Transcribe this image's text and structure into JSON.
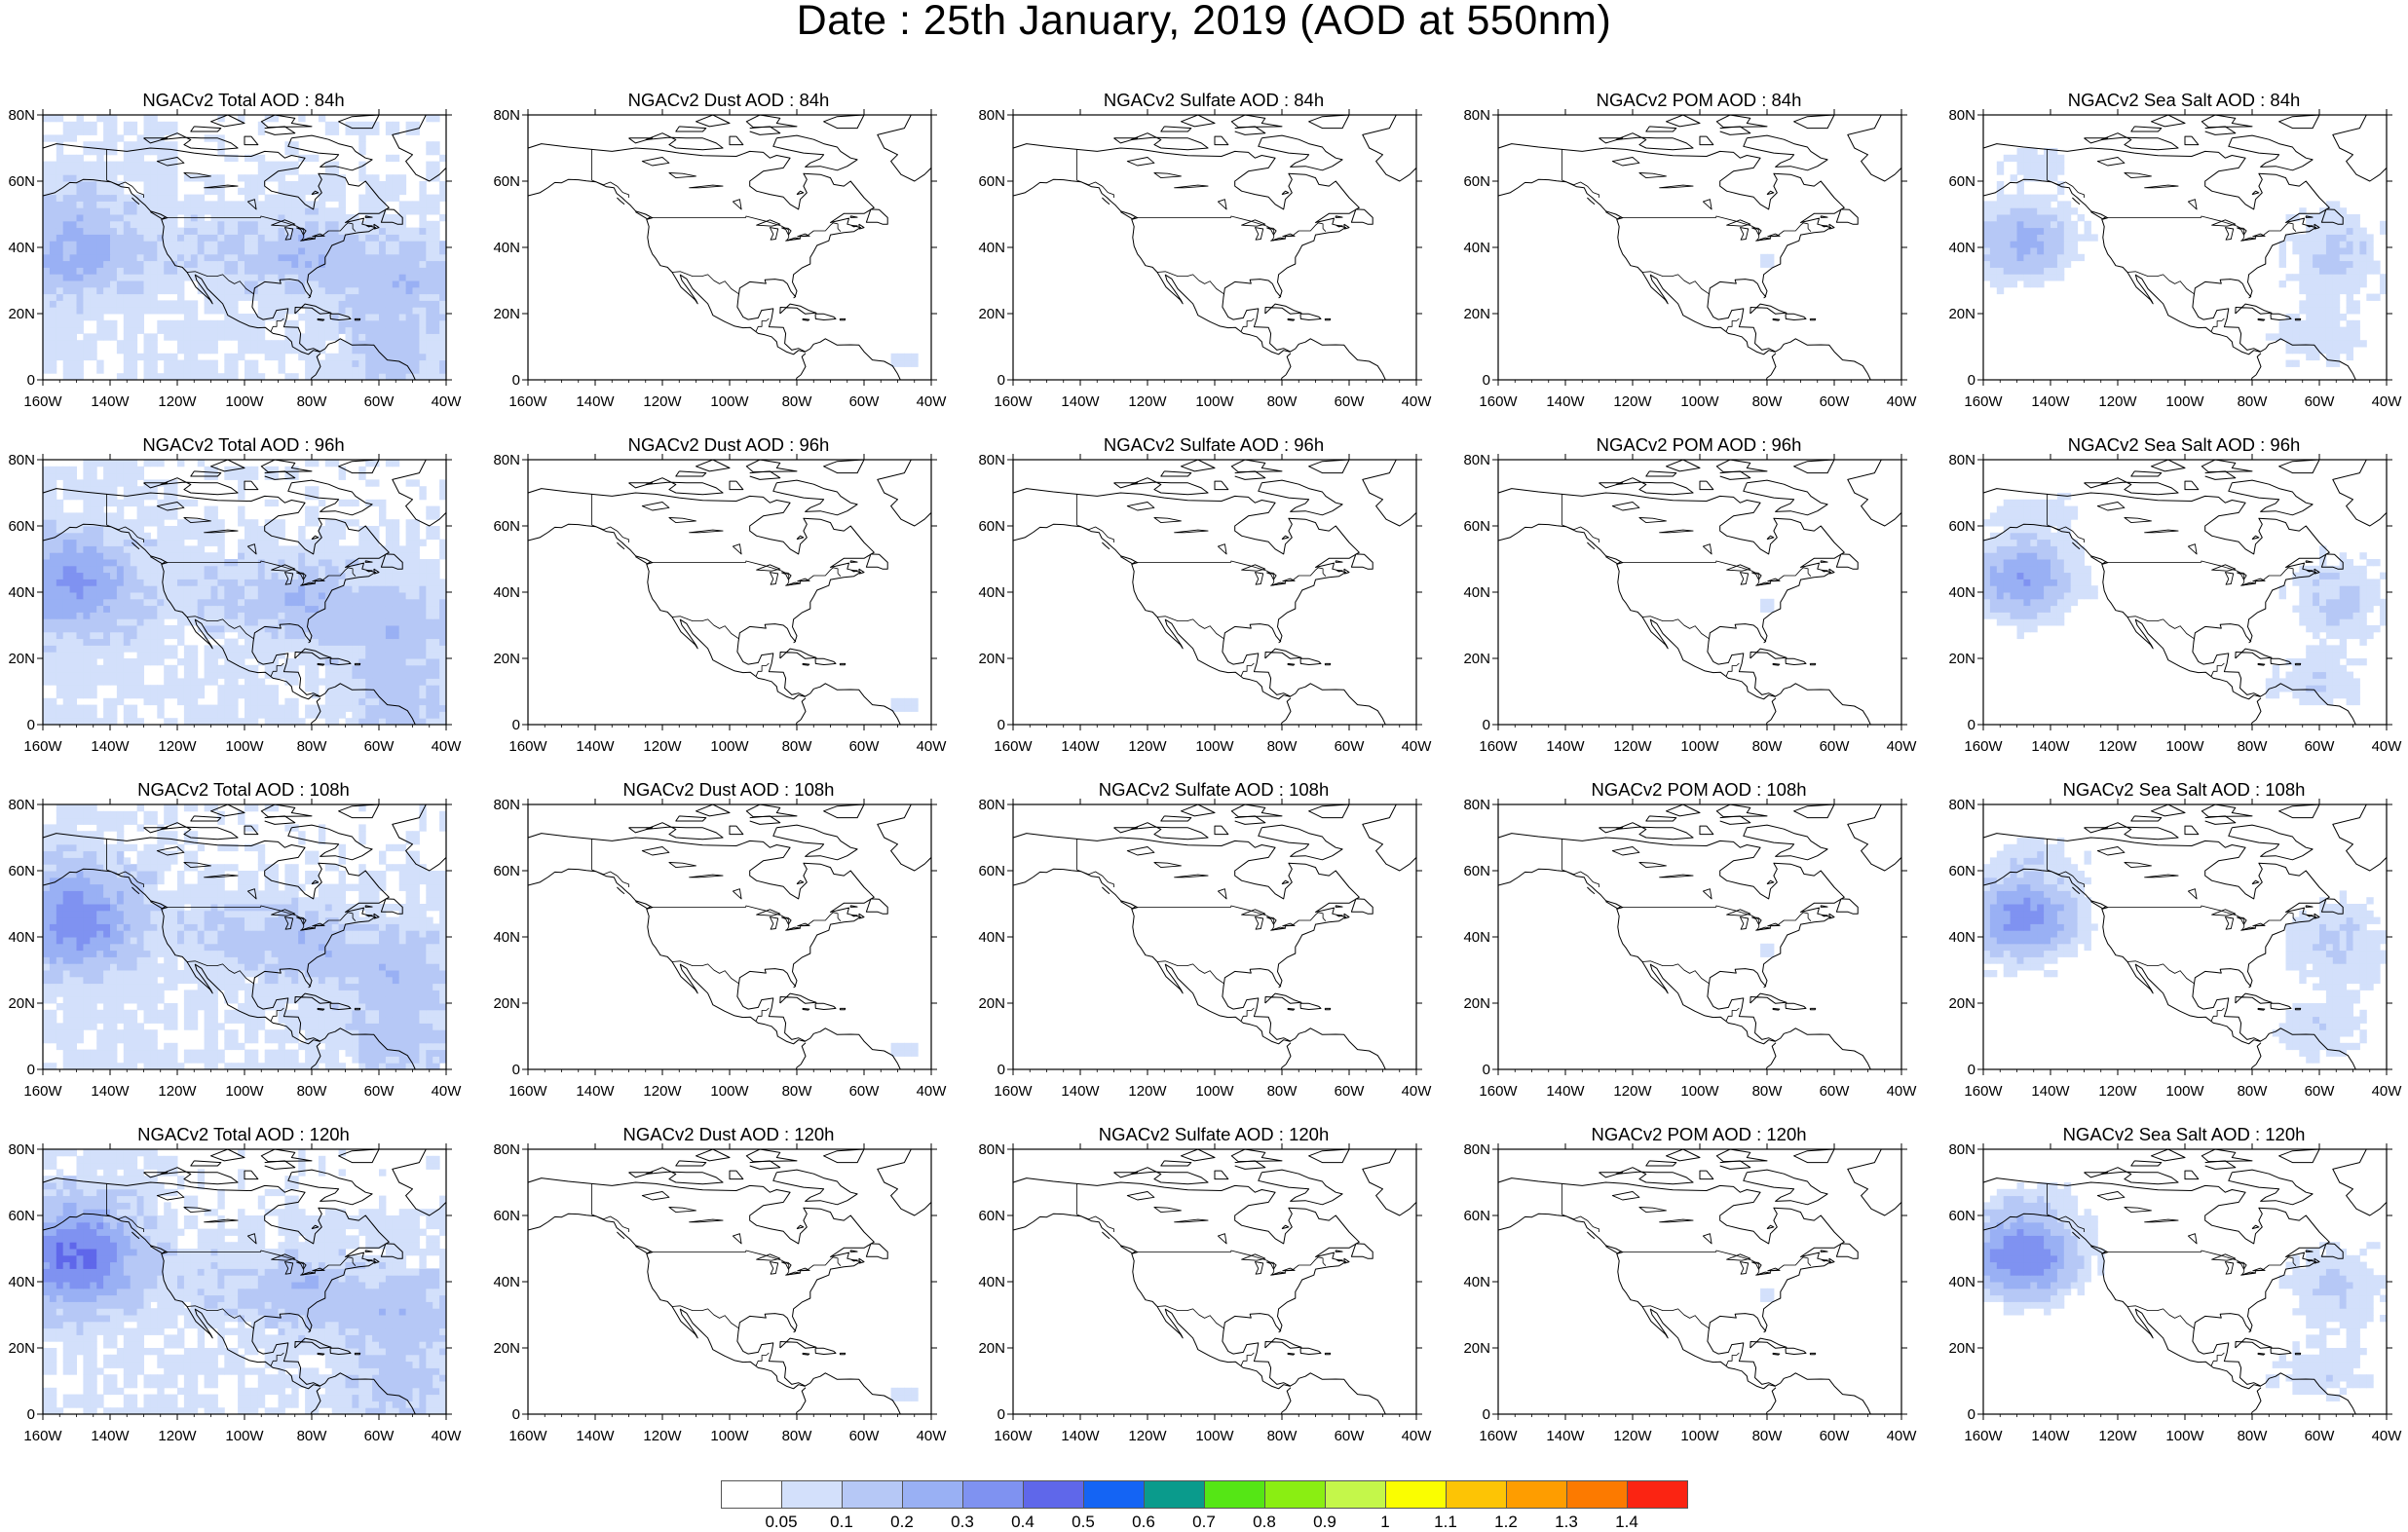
{
  "title": "Date : 25th January, 2019 (AOD at 550nm)",
  "panels": [
    {
      "title": "NGACv2 Total AOD : 84h",
      "product": "total",
      "hour": 84
    },
    {
      "title": "NGACv2 Dust AOD : 84h",
      "product": "dust",
      "hour": 84
    },
    {
      "title": "NGACv2 Sulfate AOD : 84h",
      "product": "sulfate",
      "hour": 84
    },
    {
      "title": "NGACv2 POM AOD : 84h",
      "product": "pom",
      "hour": 84
    },
    {
      "title": "NGACv2 Sea Salt AOD : 84h",
      "product": "seasalt",
      "hour": 84
    },
    {
      "title": "NGACv2 Total AOD : 96h",
      "product": "total",
      "hour": 96
    },
    {
      "title": "NGACv2 Dust AOD : 96h",
      "product": "dust",
      "hour": 96
    },
    {
      "title": "NGACv2 Sulfate AOD : 96h",
      "product": "sulfate",
      "hour": 96
    },
    {
      "title": "NGACv2 POM AOD : 96h",
      "product": "pom",
      "hour": 96
    },
    {
      "title": "NGACv2 Sea Salt AOD : 96h",
      "product": "seasalt",
      "hour": 96
    },
    {
      "title": "NGACv2 Total AOD : 108h",
      "product": "total",
      "hour": 108
    },
    {
      "title": "NGACv2 Dust AOD : 108h",
      "product": "dust",
      "hour": 108
    },
    {
      "title": "NGACv2 Sulfate AOD : 108h",
      "product": "sulfate",
      "hour": 108
    },
    {
      "title": "NGACv2 POM AOD : 108h",
      "product": "pom",
      "hour": 108
    },
    {
      "title": "NGACv2 Sea Salt AOD : 108h",
      "product": "seasalt",
      "hour": 108
    },
    {
      "title": "NGACv2 Total AOD : 120h",
      "product": "total",
      "hour": 120
    },
    {
      "title": "NGACv2 Dust AOD : 120h",
      "product": "dust",
      "hour": 120
    },
    {
      "title": "NGACv2 Sulfate AOD : 120h",
      "product": "sulfate",
      "hour": 120
    },
    {
      "title": "NGACv2 POM AOD : 120h",
      "product": "pom",
      "hour": 120
    },
    {
      "title": "NGACv2 Sea Salt  AOD : 120h",
      "product": "seasalt",
      "hour": 120
    }
  ],
  "axes": {
    "lon_ticks": [
      "160W",
      "140W",
      "120W",
      "100W",
      "80W",
      "60W",
      "40W"
    ],
    "lat_ticks": [
      "80N",
      "60N",
      "40N",
      "20N",
      "0"
    ],
    "lon_range": [
      -160,
      -40
    ],
    "lat_range": [
      0,
      80
    ]
  },
  "colorbar": {
    "labels": [
      "0.05",
      "0.1",
      "0.2",
      "0.3",
      "0.4",
      "0.5",
      "0.6",
      "0.7",
      "0.8",
      "0.9",
      "1",
      "1.1",
      "1.2",
      "1.3",
      "1.4"
    ],
    "colors": [
      "#ffffff",
      "#d3e0fb",
      "#b6c8f6",
      "#99b0f4",
      "#7f92f1",
      "#5f67ea",
      "#1464f4",
      "#0a9b8c",
      "#55e615",
      "#8aee12",
      "#c4f74a",
      "#fafe00",
      "#fdc405",
      "#fe9d00",
      "#fc7a00",
      "#fb2412"
    ]
  }
}
